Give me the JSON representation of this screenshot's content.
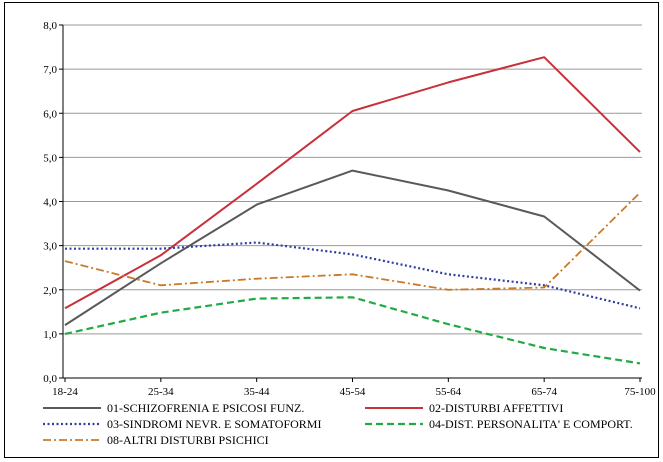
{
  "chart_data": {
    "type": "line",
    "title": "",
    "xlabel": "",
    "ylabel": "",
    "categories": [
      "18-24",
      "25-34",
      "35-44",
      "45-54",
      "55-64",
      "65-74",
      "75-100"
    ],
    "ylim": [
      0,
      8
    ],
    "yticks": [
      "0,0",
      "1,0",
      "2,0",
      "3,0",
      "4,0",
      "5,0",
      "6,0",
      "7,0",
      "8,0"
    ],
    "grid": true,
    "legend_position": "bottom",
    "series": [
      {
        "name": "01-SCHIZOFRENIA E PSICOSI FUNZ.",
        "color": "#595959",
        "dash": "solid",
        "values": [
          1.2,
          2.6,
          3.93,
          4.7,
          4.25,
          3.66,
          1.98
        ]
      },
      {
        "name": "02-DISTURBI AFFETTIVI",
        "color": "#c8303a",
        "dash": "solid",
        "values": [
          1.58,
          2.78,
          4.4,
          6.05,
          6.7,
          7.27,
          5.12
        ]
      },
      {
        "name": "03-SINDROMI NEVR. E SOMATOFORMI",
        "color": "#2f3fa0",
        "dash": "dotted",
        "values": [
          2.93,
          2.93,
          3.07,
          2.8,
          2.35,
          2.1,
          1.58
        ]
      },
      {
        "name": "04-DIST. PERSONALITA' E COMPORT.",
        "color": "#22aa44",
        "dash": "dashed",
        "values": [
          1.0,
          1.48,
          1.8,
          1.83,
          1.22,
          0.68,
          0.33
        ]
      },
      {
        "name": "08-ALTRI DISTURBI PSICHICI",
        "color": "#c87a2a",
        "dash": "dashdot",
        "values": [
          2.65,
          2.1,
          2.25,
          2.35,
          2.0,
          2.05,
          4.2
        ]
      }
    ]
  }
}
